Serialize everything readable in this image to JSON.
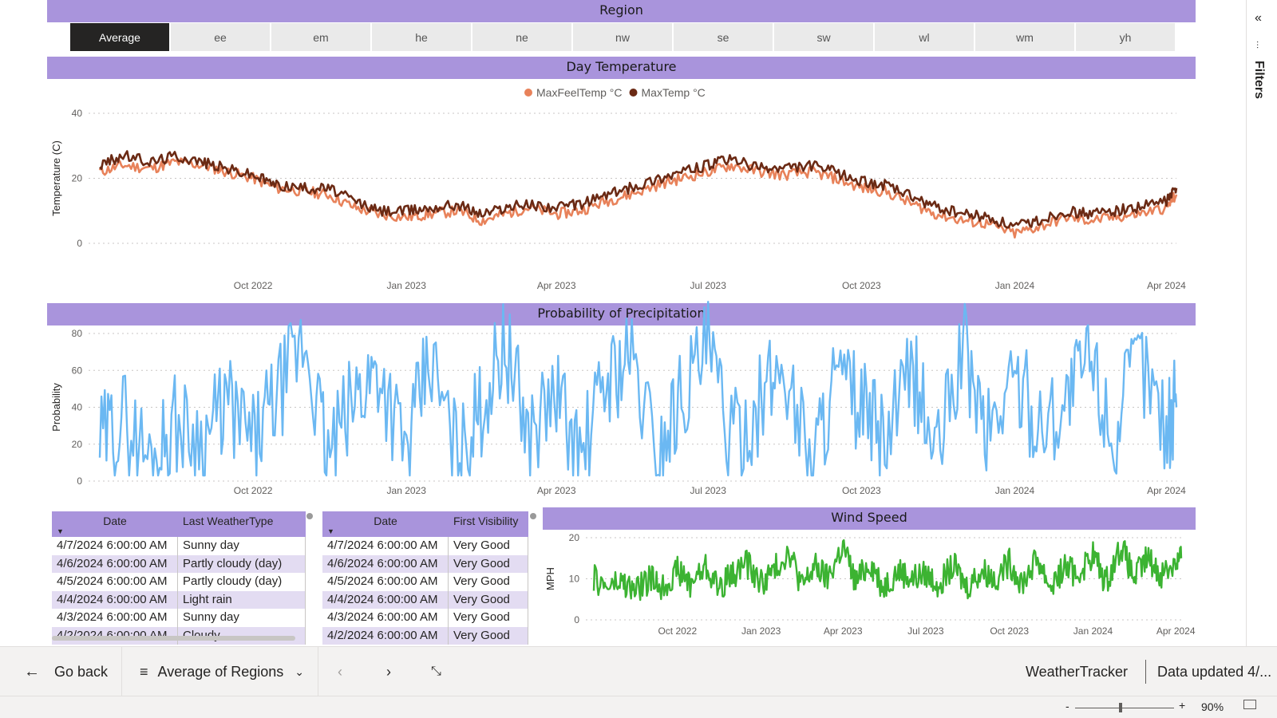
{
  "region": {
    "title": "Region",
    "options": [
      "Average",
      "ee",
      "em",
      "he",
      "ne",
      "nw",
      "se",
      "sw",
      "wl",
      "wm",
      "yh"
    ],
    "selected": "Average"
  },
  "filters_pane": {
    "label": "Filters",
    "collapse_icon": "double-chevron-left-icon"
  },
  "colors": {
    "accent_band": "#a994dc",
    "max_feel": "#e8825a",
    "max_temp": "#6b2a14",
    "precip": "#6bb8f2",
    "wind": "#3cb332"
  },
  "charts": {
    "temperature": {
      "title": "Day Temperature",
      "legend": [
        "MaxFeelTemp °C",
        "MaxTemp °C"
      ],
      "ylabel": "Temperature (C)",
      "yticks": [
        "0",
        "20",
        "40"
      ],
      "xticks": [
        "Oct 2022",
        "Jan 2023",
        "Apr 2023",
        "Jul 2023",
        "Oct 2023",
        "Jan 2024",
        "Apr 2024"
      ]
    },
    "precip": {
      "title": "Probability of Precipitation",
      "ylabel": "Probability",
      "yticks": [
        "0",
        "20",
        "40",
        "60",
        "80"
      ],
      "xticks": [
        "Oct 2022",
        "Jan 2023",
        "Apr 2023",
        "Jul 2023",
        "Oct 2023",
        "Jan 2024",
        "Apr 2024"
      ]
    },
    "wind": {
      "title": "Wind Speed",
      "ylabel": "MPH",
      "yticks": [
        "0",
        "10",
        "20"
      ],
      "xticks": [
        "Oct 2022",
        "Jan 2023",
        "Apr 2023",
        "Jul 2023",
        "Oct 2023",
        "Jan 2024",
        "Apr 2024"
      ]
    }
  },
  "chart_data": [
    {
      "type": "line",
      "title": "Day Temperature",
      "xlabel": "",
      "ylabel": "Temperature (C)",
      "ylim": [
        0,
        40
      ],
      "x": [
        "2022-07-01",
        "2022-07-15",
        "2022-08-01",
        "2022-08-15",
        "2022-09-01",
        "2022-09-15",
        "2022-10-01",
        "2022-10-15",
        "2022-11-01",
        "2022-11-15",
        "2022-12-01",
        "2022-12-15",
        "2023-01-01",
        "2023-01-15",
        "2023-02-01",
        "2023-02-15",
        "2023-03-01",
        "2023-03-15",
        "2023-04-01",
        "2023-04-15",
        "2023-05-01",
        "2023-05-15",
        "2023-06-01",
        "2023-06-15",
        "2023-07-01",
        "2023-07-15",
        "2023-08-01",
        "2023-08-15",
        "2023-09-01",
        "2023-09-15",
        "2023-10-01",
        "2023-10-15",
        "2023-11-01",
        "2023-11-15",
        "2023-12-01",
        "2023-12-15",
        "2024-01-01",
        "2024-01-15",
        "2024-02-01",
        "2024-02-15",
        "2024-03-01",
        "2024-03-15",
        "2024-04-01",
        "2024-04-07"
      ],
      "series": [
        {
          "name": "MaxFeelTemp °C",
          "values": [
            22,
            24,
            23,
            25,
            24,
            22,
            20,
            17,
            16,
            15,
            11,
            9,
            8,
            9,
            10,
            7,
            9,
            11,
            9,
            10,
            13,
            15,
            18,
            20,
            22,
            24,
            22,
            21,
            22,
            20,
            17,
            16,
            12,
            9,
            7,
            6,
            3,
            5,
            8,
            7,
            8,
            9,
            11,
            15
          ]
        },
        {
          "name": "MaxTemp °C",
          "values": [
            24,
            27,
            25,
            27,
            25,
            23,
            21,
            18,
            17,
            17,
            13,
            10,
            10,
            11,
            12,
            9,
            11,
            12,
            11,
            12,
            15,
            17,
            20,
            22,
            24,
            26,
            23,
            23,
            24,
            22,
            19,
            18,
            14,
            11,
            9,
            8,
            5,
            7,
            10,
            9,
            10,
            11,
            13,
            17
          ]
        }
      ]
    },
    {
      "type": "line",
      "title": "Probability of Precipitation",
      "xlabel": "",
      "ylabel": "Probability",
      "ylim": [
        0,
        80
      ],
      "x": [
        "2022-07-01",
        "2022-07-15",
        "2022-08-01",
        "2022-08-15",
        "2022-09-01",
        "2022-09-15",
        "2022-10-01",
        "2022-10-15",
        "2022-11-01",
        "2022-11-15",
        "2022-12-01",
        "2022-12-15",
        "2023-01-01",
        "2023-01-15",
        "2023-02-01",
        "2023-02-15",
        "2023-03-01",
        "2023-03-15",
        "2023-04-01",
        "2023-04-15",
        "2023-05-01",
        "2023-05-15",
        "2023-06-01",
        "2023-06-15",
        "2023-07-01",
        "2023-07-15",
        "2023-08-01",
        "2023-08-15",
        "2023-09-01",
        "2023-09-15",
        "2023-10-01",
        "2023-10-15",
        "2023-11-01",
        "2023-11-15",
        "2023-12-01",
        "2023-12-15",
        "2024-01-01",
        "2024-01-15",
        "2024-02-01",
        "2024-02-15",
        "2024-03-01",
        "2024-03-15",
        "2024-04-01",
        "2024-04-07"
      ],
      "series": [
        {
          "name": "Probability",
          "values": [
            20,
            35,
            10,
            32,
            22,
            43,
            20,
            45,
            76,
            12,
            45,
            62,
            15,
            66,
            12,
            40,
            76,
            25,
            48,
            10,
            55,
            68,
            14,
            48,
            72,
            20,
            42,
            64,
            10,
            55,
            40,
            20,
            60,
            12,
            74,
            25,
            58,
            30,
            44,
            68,
            22,
            70,
            30,
            40
          ]
        }
      ]
    },
    {
      "type": "line",
      "title": "Wind Speed",
      "xlabel": "",
      "ylabel": "MPH",
      "ylim": [
        0,
        20
      ],
      "x": [
        "2022-07-01",
        "2022-07-15",
        "2022-08-01",
        "2022-08-15",
        "2022-09-01",
        "2022-09-15",
        "2022-10-01",
        "2022-10-15",
        "2022-11-01",
        "2022-11-15",
        "2022-12-01",
        "2022-12-15",
        "2023-01-01",
        "2023-01-15",
        "2023-02-01",
        "2023-02-15",
        "2023-03-01",
        "2023-03-15",
        "2023-04-01",
        "2023-04-15",
        "2023-05-01",
        "2023-05-15",
        "2023-06-01",
        "2023-06-15",
        "2023-07-01",
        "2023-07-15",
        "2023-08-01",
        "2023-08-15",
        "2023-09-01",
        "2023-09-15",
        "2023-10-01",
        "2023-10-15",
        "2023-11-01",
        "2023-11-15",
        "2023-12-01",
        "2023-12-15",
        "2024-01-01",
        "2024-01-15",
        "2024-02-01",
        "2024-02-15",
        "2024-03-01",
        "2024-03-15",
        "2024-04-01",
        "2024-04-07"
      ],
      "series": [
        {
          "name": "MPH",
          "values": [
            10,
            8,
            9,
            7,
            10,
            8,
            12,
            9,
            13,
            8,
            11,
            14,
            9,
            12,
            17,
            8,
            13,
            10,
            18,
            9,
            14,
            8,
            12,
            10,
            11,
            9,
            13,
            8,
            12,
            10,
            14,
            9,
            15,
            8,
            13,
            11,
            16,
            9,
            18,
            10,
            15,
            11,
            14,
            15
          ]
        }
      ]
    }
  ],
  "table_weather": {
    "columns": [
      "Date",
      "Last WeatherType"
    ],
    "rows": [
      [
        "4/7/2024 6:00:00 AM",
        "Sunny day"
      ],
      [
        "4/6/2024 6:00:00 AM",
        "Partly cloudy (day)"
      ],
      [
        "4/5/2024 6:00:00 AM",
        "Partly cloudy (day)"
      ],
      [
        "4/4/2024 6:00:00 AM",
        "Light rain"
      ],
      [
        "4/3/2024 6:00:00 AM",
        "Sunny day"
      ],
      [
        "4/2/2024 6:00:00 AM",
        "Cloudy"
      ]
    ]
  },
  "table_visibility": {
    "columns": [
      "Date",
      "First Visibility"
    ],
    "rows": [
      [
        "4/7/2024 6:00:00 AM",
        "Very Good"
      ],
      [
        "4/6/2024 6:00:00 AM",
        "Very Good"
      ],
      [
        "4/5/2024 6:00:00 AM",
        "Very Good"
      ],
      [
        "4/4/2024 6:00:00 AM",
        "Very Good"
      ],
      [
        "4/3/2024 6:00:00 AM",
        "Very Good"
      ],
      [
        "4/2/2024 6:00:00 AM",
        "Very Good"
      ]
    ]
  },
  "bottom_bar": {
    "go_back": "Go back",
    "page_selector": "Average of Regions",
    "report_name": "WeatherTracker",
    "data_updated": "Data updated 4/..."
  },
  "status": {
    "zoom": "90%",
    "zoom_minus": "-",
    "zoom_plus": "+"
  }
}
